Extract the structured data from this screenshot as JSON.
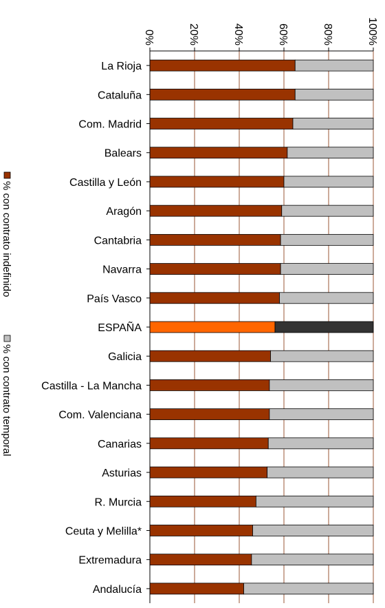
{
  "chart_data": {
    "type": "bar",
    "stacked": "percent",
    "orientation": "horizontal",
    "x_axis_position": "top",
    "x_tick_rotation": 90,
    "xlim": [
      0,
      100
    ],
    "x_ticks": [
      "0%",
      "20%",
      "40%",
      "60%",
      "80%",
      "100%"
    ],
    "grid": true,
    "legend_position": "left, rotated vertical",
    "categories": [
      "La Rioja",
      "Cataluña",
      "Com. Madrid",
      "Balears",
      "Castilla y León",
      "Aragón",
      "Cantabria",
      "Navarra",
      "País Vasco",
      "ESPAÑA",
      "Galicia",
      "Castilla - La Mancha",
      "Com. Valenciana",
      "Canarias",
      "Asturias",
      "R. Murcia",
      "Ceuta y Melilla*",
      "Extremadura",
      "Andalucía"
    ],
    "highlight_category": "ESPAÑA",
    "series": [
      {
        "name": "% con contrato indefinido",
        "color": "#993300",
        "highlight_color": "#FF6600",
        "values": [
          65,
          65,
          64,
          61.5,
          60,
          59,
          58.5,
          58.5,
          58,
          56,
          54,
          53.5,
          53.5,
          53,
          52.5,
          47.5,
          46,
          45.5,
          42
        ]
      },
      {
        "name": "% con contrato temporal",
        "color": "#C0C0C0",
        "highlight_color": "#333333",
        "values": [
          35,
          35,
          36,
          38.5,
          40,
          41,
          41.5,
          41.5,
          42,
          44,
          46,
          46.5,
          46.5,
          47,
          47.5,
          52.5,
          54,
          54.5,
          58
        ]
      }
    ]
  }
}
